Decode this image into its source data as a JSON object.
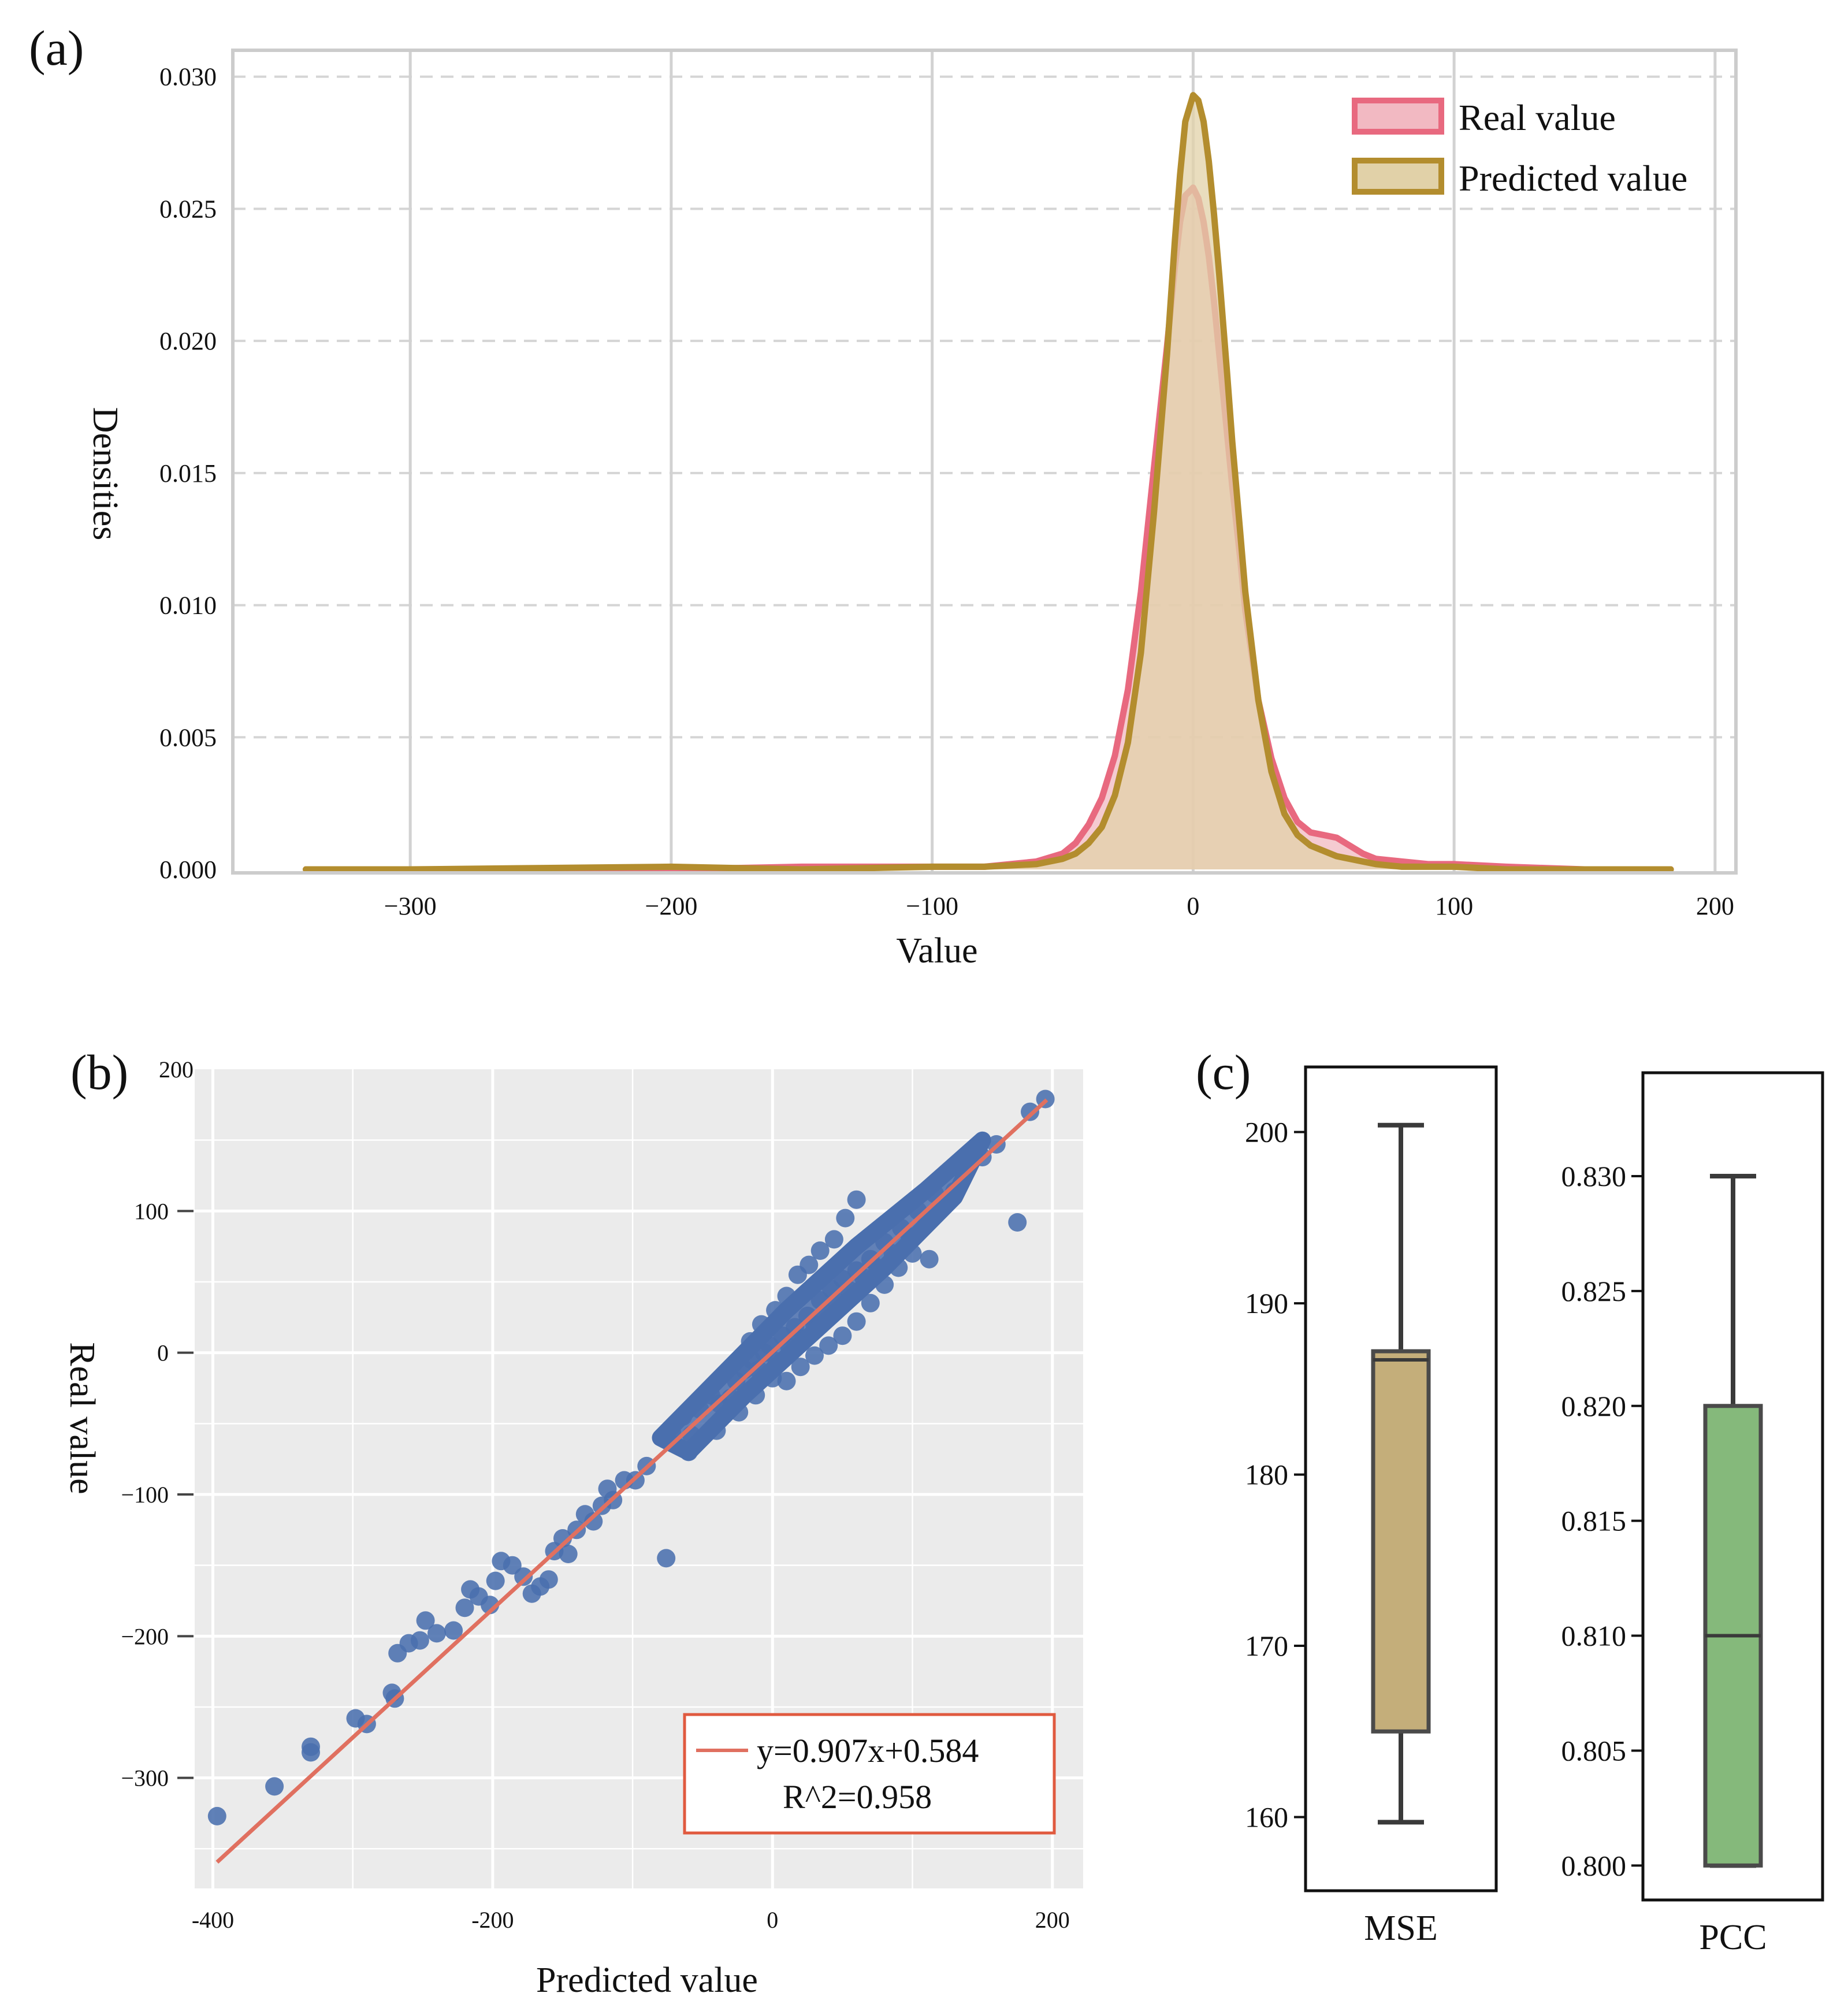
{
  "panels": {
    "a": {
      "label": "(a)"
    },
    "b": {
      "label": "(b)"
    },
    "c": {
      "label": "(c)"
    }
  },
  "chart_data": [
    {
      "id": "a",
      "type": "area",
      "xlabel": "Value",
      "ylabel": "Densities",
      "xlim": [
        -368,
        208
      ],
      "ylim": [
        0,
        0.031
      ],
      "xticks": [
        -300,
        -200,
        -100,
        0,
        100,
        200
      ],
      "xtick_labels": [
        "−300",
        "−200",
        "−100",
        "0",
        "100",
        "200"
      ],
      "yticks": [
        0,
        0.005,
        0.01,
        0.015,
        0.02,
        0.025,
        0.03
      ],
      "ytick_labels": [
        "0.000",
        "0.005",
        "0.010",
        "0.015",
        "0.020",
        "0.025",
        "0.030"
      ],
      "grid": "dashed-horizontal, solid-vertical",
      "legend_position": "top-right",
      "series": [
        {
          "name": "Real value",
          "color": "#e8697f",
          "fill": "#f2b9c2",
          "x": [
            -340,
            -300,
            -200,
            -150,
            -100,
            -80,
            -60,
            -50,
            -45,
            -40,
            -35,
            -30,
            -25,
            -20,
            -15,
            -10,
            -7,
            -5,
            -3,
            0,
            2,
            4,
            6,
            8,
            10,
            13,
            15,
            18,
            20,
            25,
            30,
            35,
            40,
            45,
            50,
            55,
            60,
            65,
            70,
            80,
            90,
            100,
            120,
            150,
            183
          ],
          "values": [
            0,
            0,
            0,
            0.0001,
            0.0001,
            0.0001,
            0.0003,
            0.0006,
            0.001,
            0.0017,
            0.0027,
            0.0043,
            0.0068,
            0.0105,
            0.0152,
            0.0198,
            0.0228,
            0.0245,
            0.0255,
            0.0258,
            0.0254,
            0.0245,
            0.0232,
            0.0215,
            0.0195,
            0.0165,
            0.0145,
            0.0118,
            0.0098,
            0.0064,
            0.0042,
            0.0027,
            0.0018,
            0.0014,
            0.0013,
            0.0012,
            0.0009,
            0.0006,
            0.0004,
            0.0003,
            0.0002,
            0.0002,
            0.0001,
            0,
            0
          ]
        },
        {
          "name": "Predicted value",
          "color": "#b38d2e",
          "fill": "#e1d1a8",
          "x": [
            -340,
            -300,
            -200,
            -150,
            -100,
            -80,
            -60,
            -50,
            -45,
            -40,
            -35,
            -30,
            -25,
            -20,
            -15,
            -10,
            -7,
            -5,
            -3,
            0,
            2,
            4,
            6,
            8,
            10,
            13,
            15,
            18,
            20,
            25,
            30,
            35,
            40,
            45,
            50,
            55,
            60,
            65,
            70,
            80,
            90,
            100,
            120,
            150,
            183
          ],
          "values": [
            0,
            0,
            0.0001,
            0,
            0.0001,
            0.0001,
            0.0002,
            0.0004,
            0.0006,
            0.001,
            0.0016,
            0.0028,
            0.0048,
            0.0082,
            0.0135,
            0.0195,
            0.0238,
            0.0263,
            0.0283,
            0.0293,
            0.0291,
            0.0283,
            0.0268,
            0.0248,
            0.0225,
            0.0188,
            0.0162,
            0.0128,
            0.0105,
            0.0064,
            0.0037,
            0.0021,
            0.0013,
            0.0009,
            0.0007,
            0.0005,
            0.0004,
            0.0003,
            0.0002,
            0.0001,
            0.0001,
            0.0001,
            0,
            0,
            0
          ]
        }
      ]
    },
    {
      "id": "b",
      "type": "scatter",
      "xlabel": "Predicted value",
      "ylabel": "Real value",
      "xlim": [
        -413,
        222
      ],
      "ylim": [
        -378,
        200
      ],
      "xticks": [
        -400,
        -200,
        0,
        200
      ],
      "xtick_labels": [
        "-400",
        "-200",
        "0",
        "200"
      ],
      "yticks": [
        200,
        100,
        0,
        -100,
        -200,
        -300
      ],
      "ytick_labels": [
        "200",
        "100",
        "0",
        "−100",
        "−200",
        "−300"
      ],
      "grid": true,
      "point_color": "#4a6fae",
      "fit_line_color": "#e07060",
      "fit": {
        "slope": 0.907,
        "intercept": 0.584,
        "x_range": [
          -397,
          196
        ]
      },
      "legend_position": "bottom-right",
      "legend_lines": [
        "y=0.907x+0.584",
        "R^2=0.958"
      ],
      "points": [
        [
          -397,
          -327
        ],
        [
          -356,
          -306
        ],
        [
          -330,
          -282
        ],
        [
          -330,
          -278
        ],
        [
          -298,
          -258
        ],
        [
          -290,
          -262
        ],
        [
          -272,
          -240
        ],
        [
          -270,
          -244
        ],
        [
          -268,
          -212
        ],
        [
          -260,
          -205
        ],
        [
          -252,
          -203
        ],
        [
          -248,
          -189
        ],
        [
          -240,
          -198
        ],
        [
          -228,
          -196
        ],
        [
          -220,
          -180
        ],
        [
          -216,
          -167
        ],
        [
          -210,
          -172
        ],
        [
          -202,
          -178
        ],
        [
          -198,
          -161
        ],
        [
          -194,
          -147
        ],
        [
          -186,
          -150
        ],
        [
          -178,
          -158
        ],
        [
          -172,
          -170
        ],
        [
          -166,
          -165
        ],
        [
          -160,
          -160
        ],
        [
          -156,
          -140
        ],
        [
          -150,
          -131
        ],
        [
          -146,
          -142
        ],
        [
          -140,
          -125
        ],
        [
          -134,
          -114
        ],
        [
          -128,
          -119
        ],
        [
          -122,
          -108
        ],
        [
          -118,
          -96
        ],
        [
          -114,
          -104
        ],
        [
          -106,
          -90
        ],
        [
          -98,
          -90
        ],
        [
          -90,
          -80
        ],
        [
          -76,
          -145
        ],
        [
          -72,
          -56
        ],
        [
          -64,
          -45
        ],
        [
          -58,
          -58
        ],
        [
          -52,
          -40
        ],
        [
          -44,
          -30
        ],
        [
          175,
          92
        ],
        [
          112,
          66
        ],
        [
          195,
          179
        ],
        [
          184,
          170
        ],
        [
          160,
          147
        ],
        [
          150,
          138
        ],
        [
          140,
          131
        ],
        [
          130,
          114
        ],
        [
          -38,
          -36
        ],
        [
          -30,
          -32
        ],
        [
          -26,
          -20
        ],
        [
          -20,
          -12
        ],
        [
          -15,
          -5
        ],
        [
          -10,
          -12
        ],
        [
          -6,
          0
        ],
        [
          -2,
          5
        ],
        [
          3,
          -6
        ],
        [
          7,
          12
        ],
        [
          12,
          4
        ],
        [
          16,
          18
        ],
        [
          20,
          10
        ],
        [
          25,
          26
        ],
        [
          30,
          20
        ],
        [
          34,
          37
        ],
        [
          38,
          28
        ],
        [
          42,
          45
        ],
        [
          46,
          36
        ],
        [
          50,
          52
        ],
        [
          55,
          44
        ],
        [
          60,
          58
        ],
        [
          65,
          53
        ],
        [
          70,
          66
        ],
        [
          75,
          60
        ],
        [
          80,
          78
        ],
        [
          86,
          70
        ],
        [
          92,
          88
        ],
        [
          98,
          82
        ],
        [
          104,
          100
        ],
        [
          110,
          94
        ],
        [
          116,
          112
        ],
        [
          122,
          104
        ],
        [
          -16,
          8
        ],
        [
          -8,
          20
        ],
        [
          2,
          30
        ],
        [
          10,
          40
        ],
        [
          18,
          55
        ],
        [
          26,
          62
        ],
        [
          34,
          72
        ],
        [
          44,
          80
        ],
        [
          52,
          95
        ],
        [
          60,
          108
        ],
        [
          10,
          -20
        ],
        [
          20,
          -10
        ],
        [
          30,
          -2
        ],
        [
          40,
          5
        ],
        [
          50,
          12
        ],
        [
          60,
          22
        ],
        [
          70,
          35
        ],
        [
          80,
          48
        ],
        [
          90,
          60
        ],
        [
          100,
          70
        ],
        [
          -60,
          -70
        ],
        [
          -40,
          -55
        ],
        [
          -24,
          -42
        ],
        [
          -12,
          -30
        ],
        [
          0,
          -18
        ]
      ]
    },
    {
      "id": "c-mse",
      "type": "box",
      "xlabel": "MSE",
      "ylim": [
        155.7,
        203.8
      ],
      "yticks": [
        160,
        170,
        180,
        190,
        200
      ],
      "ytick_labels": [
        "160",
        "170",
        "180",
        "190",
        "200"
      ],
      "color": "#c4ae7a",
      "box": {
        "whisker_low": 159.7,
        "q1": 165.0,
        "median": 186.7,
        "q3": 187.2,
        "whisker_high": 200.4
      }
    },
    {
      "id": "c-pcc",
      "type": "box",
      "xlabel": "PCC",
      "ylim": [
        0.7985,
        0.8345
      ],
      "yticks": [
        0.8,
        0.805,
        0.81,
        0.815,
        0.82,
        0.825,
        0.83
      ],
      "ytick_labels": [
        "0.800",
        "0.805",
        "0.810",
        "0.815",
        "0.820",
        "0.825",
        "0.830"
      ],
      "color": "#85b97b",
      "box": {
        "whisker_low": 0.8,
        "q1": 0.8,
        "median": 0.81,
        "q3": 0.82,
        "whisker_high": 0.83
      }
    }
  ]
}
